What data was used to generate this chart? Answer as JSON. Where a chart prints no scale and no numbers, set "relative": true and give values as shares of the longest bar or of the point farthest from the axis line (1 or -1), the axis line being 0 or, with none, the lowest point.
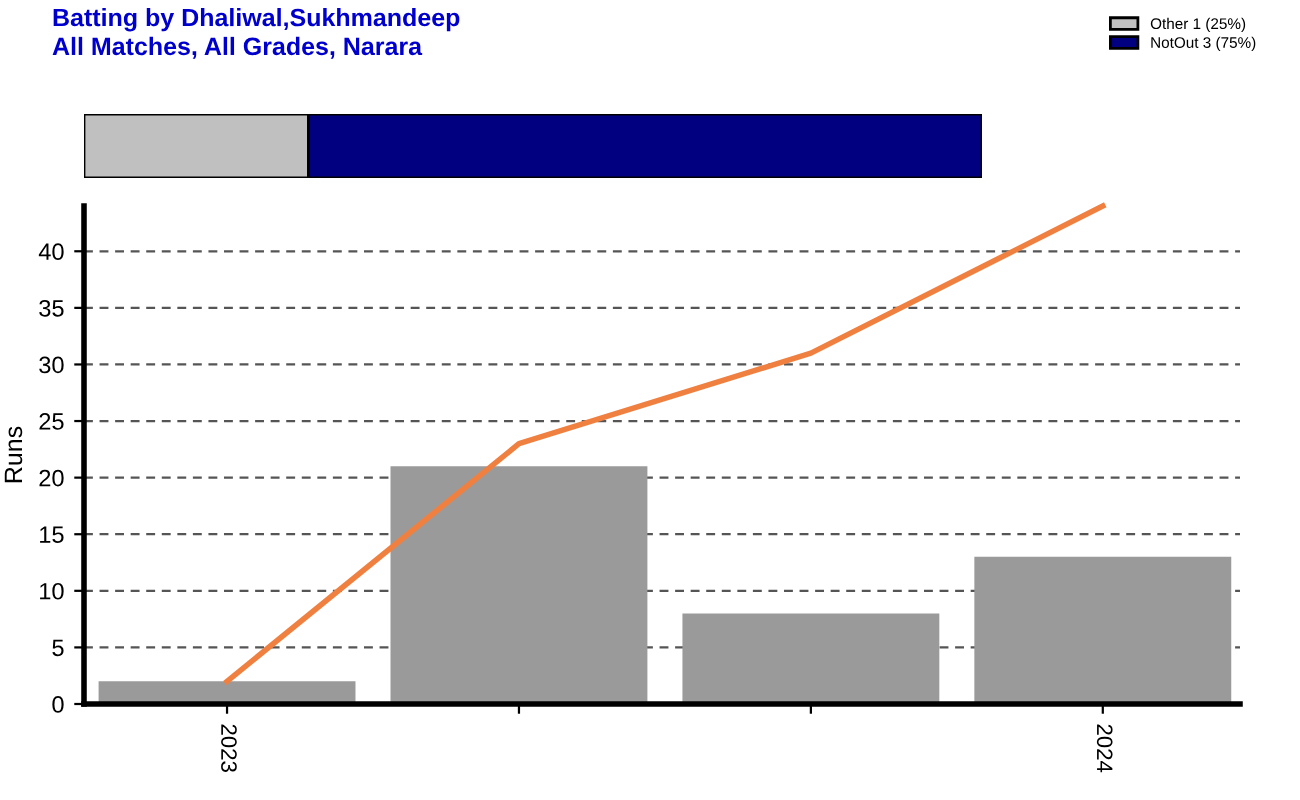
{
  "chart_data": [
    {
      "type": "bar",
      "title": "Batting by Dhaliwal,Sukhmandeep\nAll Matches, All Grades, Narara",
      "orientation": "horizontal",
      "stacked": true,
      "relative": true,
      "categories": [
        null
      ],
      "legend": "top right",
      "series": [
        {
          "name": "Other 1 (25%)",
          "color": "#c0c0c0",
          "values": [
            0.25
          ]
        },
        {
          "name": "NotOut 3 (75%)",
          "color": "#000080",
          "values": [
            0.75
          ]
        }
      ]
    },
    {
      "type": "bar",
      "ylabel": "Runs",
      "categories": [
        "2023",
        null,
        null,
        "2024"
      ],
      "ylim": [
        0,
        44
      ],
      "yticks": [
        0,
        5,
        10,
        15,
        20,
        25,
        30,
        35,
        40
      ],
      "grid": "y",
      "series": [
        {
          "color": "#9a9a9a",
          "values": [
            2,
            21,
            8,
            13
          ]
        },
        {
          "type": "line",
          "color": "#f08040",
          "line_style": "solid",
          "values": [
            2,
            23,
            31,
            44
          ]
        }
      ]
    }
  ]
}
